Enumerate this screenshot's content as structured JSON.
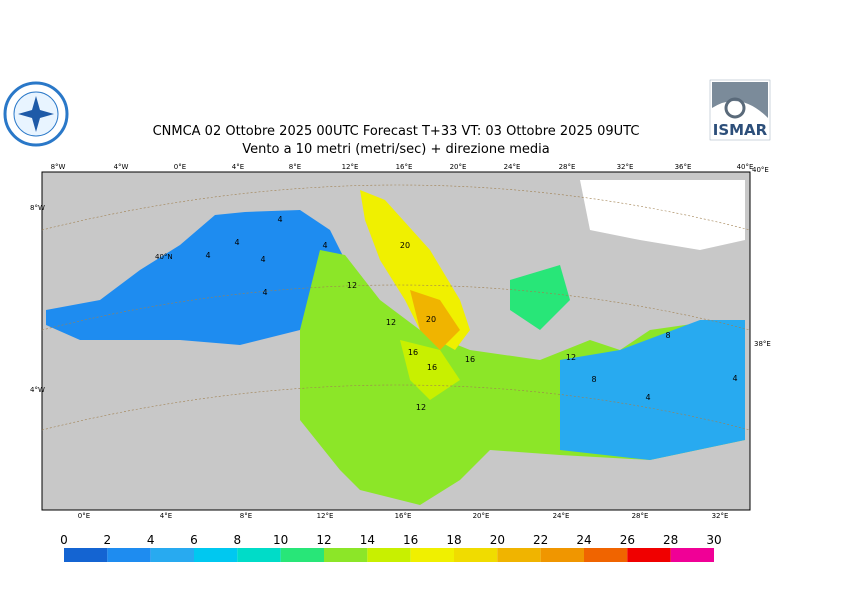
{
  "header": {
    "title": "CNMCA 02  Ottobre  2025 00UTC Forecast T+33 VT: 03  Ottobre  2025 09UTC",
    "subtitle": "Vento a 10 metri (metri/sec) + direzione media"
  },
  "logo": {
    "text": "ISMAR"
  },
  "map": {
    "top_labels": [
      "8°W",
      "4°W",
      "0°E",
      "4°E",
      "8°E",
      "12°E",
      "16°E",
      "20°E",
      "24°E",
      "28°E",
      "32°E",
      "36°E",
      "40°E"
    ],
    "left_labels": [
      "8°W",
      "40°N",
      "4°W"
    ],
    "right_labels": [
      "40°E",
      "38°E"
    ],
    "bottom_labels": [
      "0°E",
      "4°E",
      "8°E",
      "12°E",
      "16°E",
      "20°E",
      "24°E",
      "28°E",
      "32°E"
    ],
    "contour_labels": [
      "4",
      "4",
      "4",
      "4",
      "4",
      "4",
      "12",
      "12",
      "16",
      "16",
      "20",
      "20",
      "12",
      "16",
      "12",
      "8",
      "4",
      "4",
      "8"
    ]
  },
  "colorbar": {
    "ticks": [
      0,
      2,
      4,
      6,
      8,
      10,
      12,
      14,
      16,
      18,
      20,
      22,
      24,
      26,
      28,
      30
    ],
    "colors": [
      "#1464d2",
      "#1e8cf0",
      "#28aaf0",
      "#00c8f0",
      "#00dcc8",
      "#28e678",
      "#8ce628",
      "#c8f000",
      "#f0f000",
      "#f0dc00",
      "#f0b400",
      "#f09600",
      "#f06400",
      "#f00000",
      "#f00096"
    ]
  }
}
